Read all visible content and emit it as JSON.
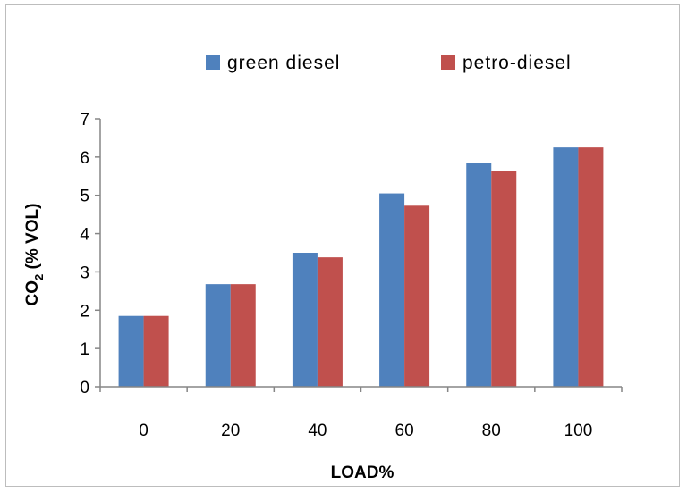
{
  "chart_data": {
    "type": "bar",
    "categories": [
      "0",
      "20",
      "40",
      "60",
      "80",
      "100"
    ],
    "series": [
      {
        "name": "green diesel",
        "color": "#4F81BD",
        "values": [
          1.85,
          2.68,
          3.5,
          5.05,
          5.85,
          6.25
        ]
      },
      {
        "name": "petro-diesel",
        "color": "#C0504D",
        "values": [
          1.85,
          2.68,
          3.38,
          4.73,
          5.63,
          6.25
        ]
      }
    ],
    "title": "",
    "xlabel": "LOAD%",
    "ylabel_main": "CO",
    "ylabel_sub": "2",
    "ylabel_rest": " (% VOL)",
    "ylim": [
      0,
      7
    ],
    "yticks": [
      "0",
      "1",
      "2",
      "3",
      "4",
      "5",
      "6",
      "7"
    ],
    "grid": false,
    "legend_position": "top"
  }
}
